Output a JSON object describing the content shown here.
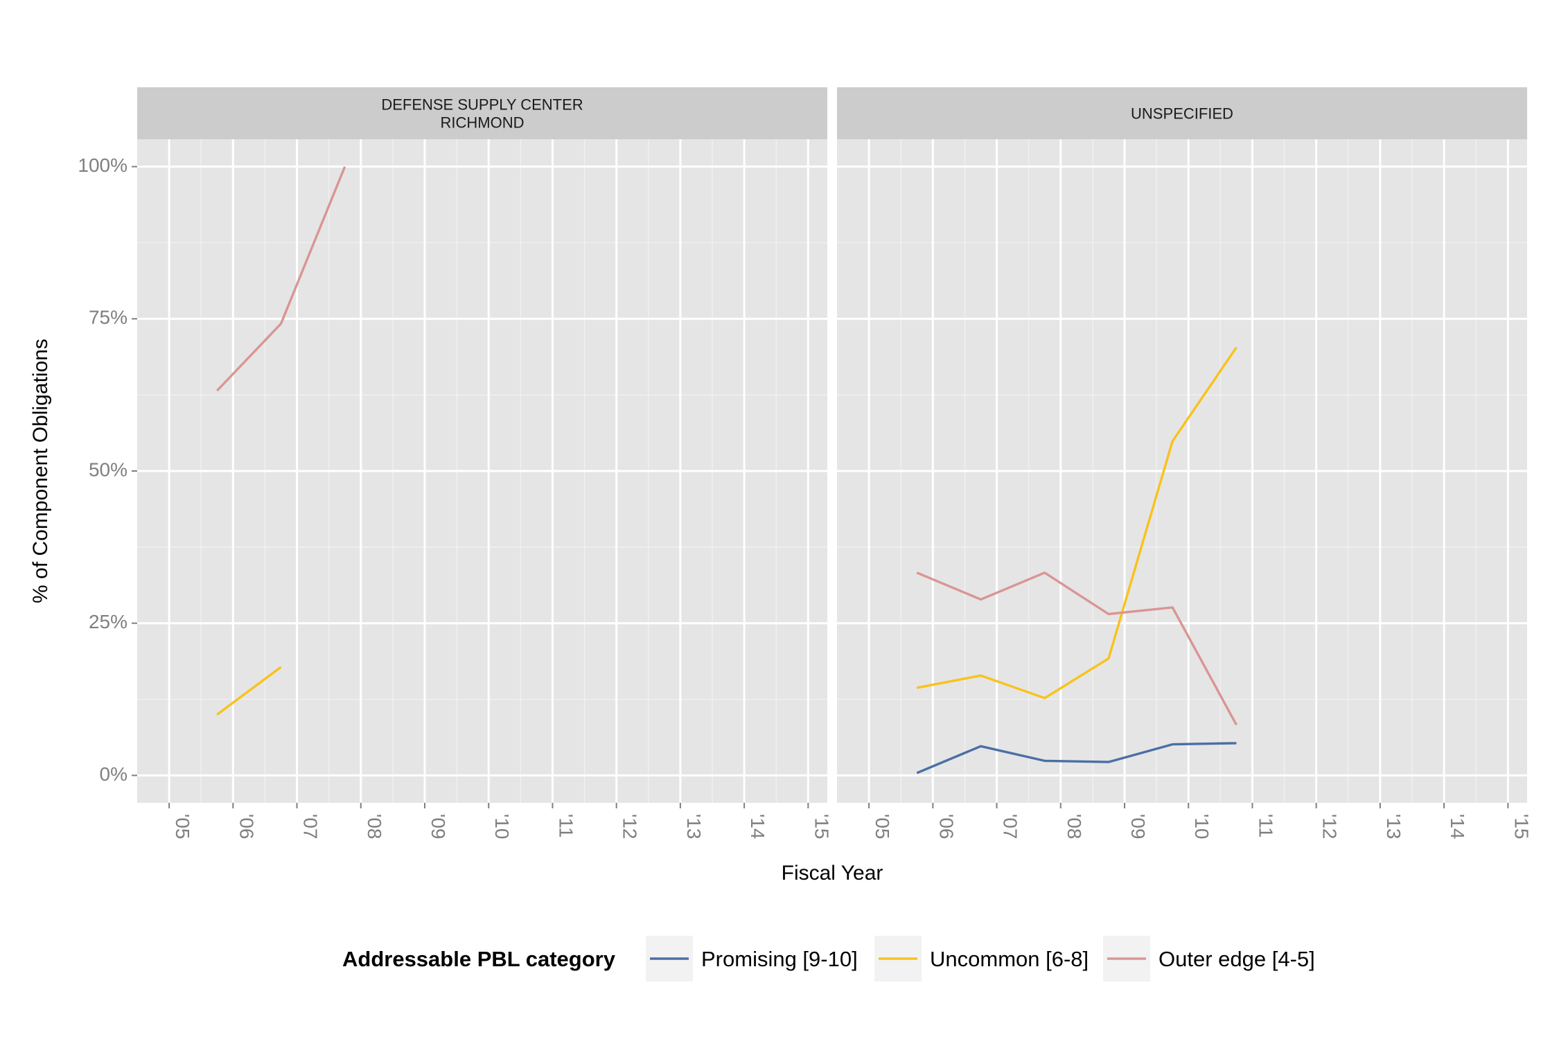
{
  "chart_data": {
    "type": "line",
    "ylabel": "% of Component Obligations",
    "xlabel": "Fiscal Year",
    "ylim": [
      -0.045,
      1.045
    ],
    "xlim": [
      2004.5,
      2015.3
    ],
    "y_ticks": [
      0,
      0.25,
      0.5,
      0.75,
      1.0
    ],
    "y_tick_labels": [
      "0%",
      "25%",
      "50%",
      "75%",
      "100%"
    ],
    "x_ticks": [
      2005,
      2006,
      2007,
      2008,
      2009,
      2010,
      2011,
      2012,
      2013,
      2014,
      2015
    ],
    "x_tick_labels": [
      "'05",
      "'06",
      "'07",
      "'08",
      "'09",
      "'10",
      "'11",
      "'12",
      "'13",
      "'14",
      "'15"
    ],
    "grid": true,
    "legend": {
      "title": "Addressable PBL category",
      "position": "bottom",
      "entries": [
        {
          "name": "Promising [9-10]",
          "color": "#4a6fa5"
        },
        {
          "name": "Uncommon [6-8]",
          "color": "#f9c21b"
        },
        {
          "name": "Outer edge [4-5]",
          "color": "#d99594"
        }
      ]
    },
    "panels": [
      {
        "title_lines": [
          "DEFENSE SUPPLY CENTER",
          "RICHMOND"
        ],
        "series": [
          {
            "name": "Uncommon [6-8]",
            "color": "#f9c21b",
            "x": [
              2005.75,
              2006.75
            ],
            "y": [
              0.1,
              0.178
            ]
          },
          {
            "name": "Outer edge [4-5]",
            "color": "#d99594",
            "x": [
              2005.75,
              2006.75,
              2007.75
            ],
            "y": [
              0.632,
              0.742,
              1.0
            ]
          }
        ]
      },
      {
        "title_lines": [
          "UNSPECIFIED"
        ],
        "series": [
          {
            "name": "Promising [9-10]",
            "color": "#4a6fa5",
            "x": [
              2005.75,
              2006.75,
              2007.75,
              2008.75,
              2009.75,
              2010.75
            ],
            "y": [
              0.004,
              0.048,
              0.024,
              0.022,
              0.051,
              0.053
            ]
          },
          {
            "name": "Uncommon [6-8]",
            "color": "#f9c21b",
            "x": [
              2005.75,
              2006.75,
              2007.75,
              2008.75,
              2009.75,
              2010.75
            ],
            "y": [
              0.144,
              0.164,
              0.127,
              0.192,
              0.549,
              0.703
            ]
          },
          {
            "name": "Outer edge [4-5]",
            "color": "#d99594",
            "x": [
              2005.75,
              2006.75,
              2007.75,
              2008.75,
              2009.75,
              2010.75
            ],
            "y": [
              0.333,
              0.289,
              0.333,
              0.265,
              0.276,
              0.083
            ]
          }
        ]
      }
    ]
  }
}
